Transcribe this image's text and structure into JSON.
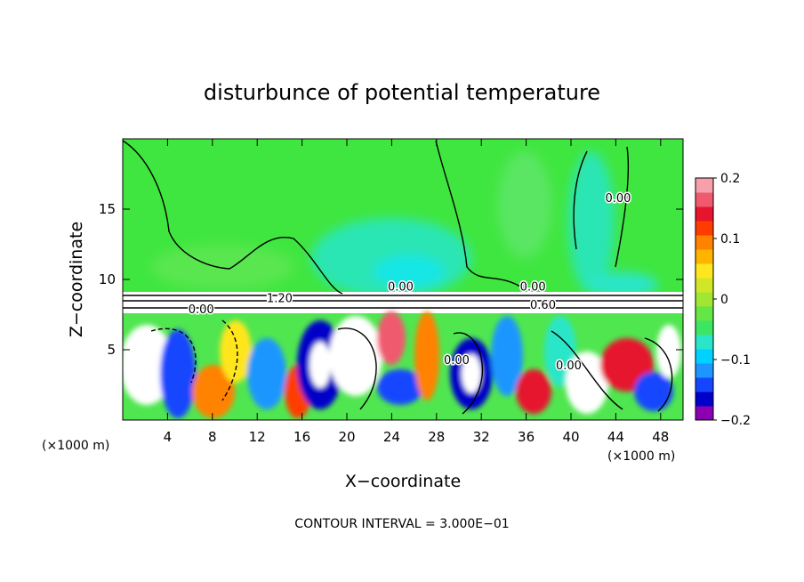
{
  "chart_data": {
    "type": "heatmap",
    "title": "disturbunce of potential temperature",
    "xlabel": "X−coordinate",
    "ylabel": "Z−coordinate",
    "x_unit_left": "(×1000 m)",
    "x_unit_right": "(×1000 m)",
    "footer": "CONTOUR INTERVAL = 3.000E−01",
    "xlim": [
      0,
      50
    ],
    "ylim": [
      0,
      20
    ],
    "x_ticks": [
      "4",
      "8",
      "12",
      "16",
      "20",
      "24",
      "28",
      "32",
      "36",
      "40",
      "44",
      "48"
    ],
    "x_tick_values": [
      4,
      8,
      12,
      16,
      20,
      24,
      28,
      32,
      36,
      40,
      44,
      48
    ],
    "y_ticks": [
      "5",
      "10",
      "15"
    ],
    "y_tick_values": [
      5,
      10,
      15
    ],
    "colorbar": {
      "range": [
        -0.2,
        0.2
      ],
      "tick_labels": [
        "0.2",
        "0.1",
        "0",
        "−0.1",
        "−0.2"
      ],
      "tick_values": [
        0.2,
        0.1,
        0,
        -0.1,
        -0.2
      ],
      "colors": [
        "#8c00b4",
        "#0000c8",
        "#1446ff",
        "#1e96ff",
        "#00d2ff",
        "#2ae6c8",
        "#3ce664",
        "#64e646",
        "#a0e632",
        "#d2e628",
        "#ffe61e",
        "#ffb400",
        "#ff8200",
        "#ff3c00",
        "#e6142d",
        "#f05a6e",
        "#f5a0aa"
      ]
    },
    "contour_labels": [
      {
        "text": "0.00",
        "x": 44.2,
        "y": 15.5
      },
      {
        "text": "1.20",
        "x": 14.0,
        "y": 8.4
      },
      {
        "text": "0.00",
        "x": 24.8,
        "y": 9.2
      },
      {
        "text": "0.00",
        "x": 36.6,
        "y": 9.2
      },
      {
        "text": "0.60",
        "x": 37.5,
        "y": 7.9
      },
      {
        "text": "0.00",
        "x": 7.0,
        "y": 7.6
      },
      {
        "text": "0.00",
        "x": 29.8,
        "y": 4.0
      },
      {
        "text": "0.00",
        "x": 39.8,
        "y": 3.6
      }
    ]
  }
}
